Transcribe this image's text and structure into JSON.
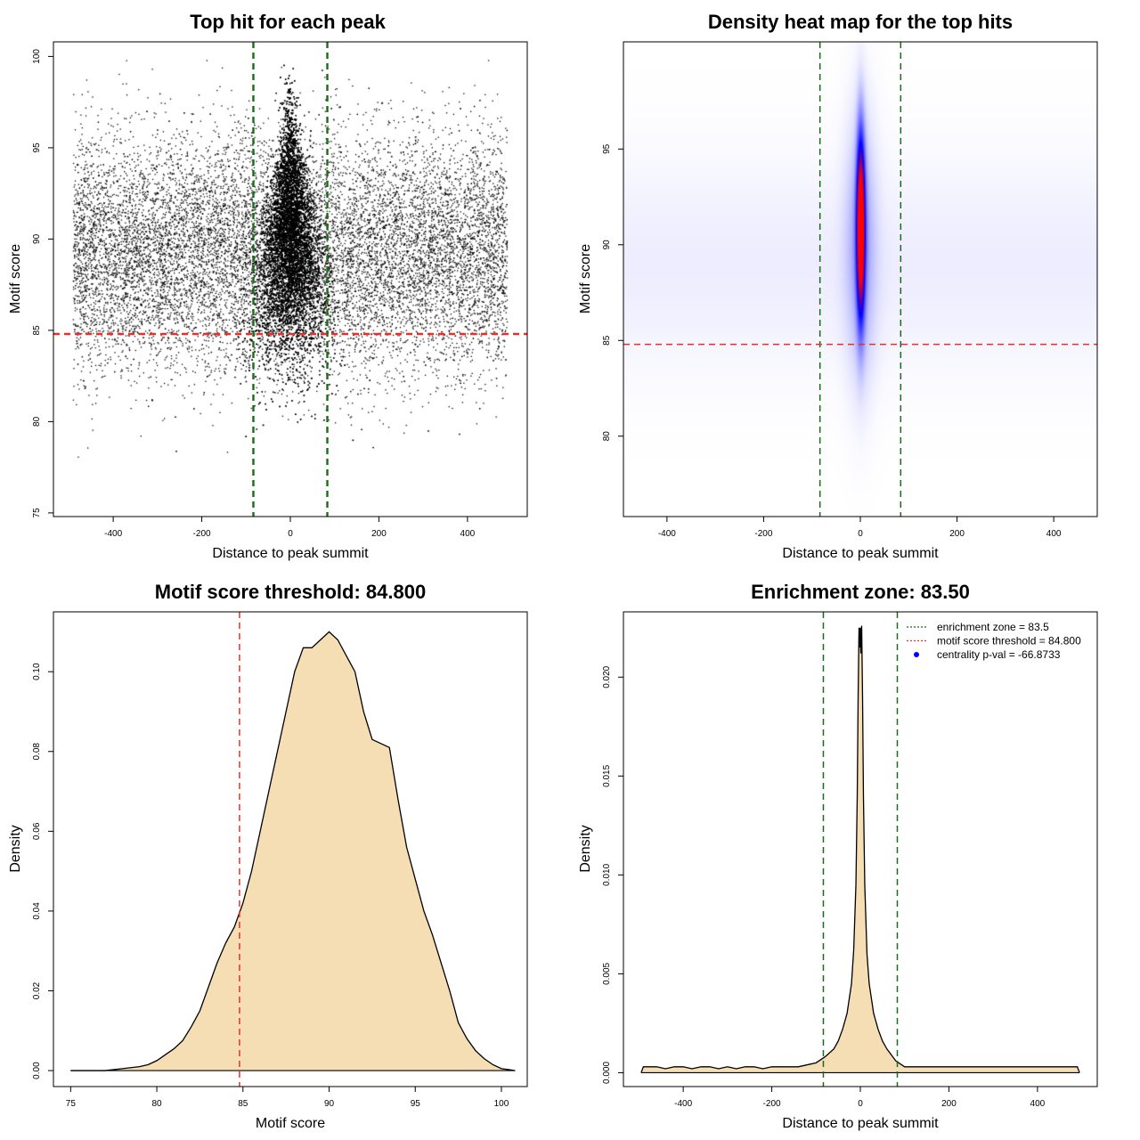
{
  "colors": {
    "vline": "#1a6b1a",
    "hline": "#e8302a",
    "fill": "#f5deb3",
    "point": "#000000",
    "heat_low": "#ffffff",
    "heat_mid": "#0000ff",
    "heat_high": "#ff0000",
    "legend_dot": "#0000ff"
  },
  "chart_data": [
    {
      "type": "scatter",
      "title": "Top hit for each peak",
      "xlabel": "Distance to peak summit",
      "ylabel": "Motif score",
      "xlim": [
        -535,
        535
      ],
      "ylim": [
        74.8,
        100.8
      ],
      "xticks": [
        -400,
        -200,
        0,
        200,
        400
      ],
      "yticks": [
        75,
        80,
        85,
        90,
        95,
        100
      ],
      "vlines": [
        -83.5,
        83.5
      ],
      "hline": 84.8,
      "point_density": {
        "x_range": [
          -490,
          490
        ],
        "center_sd": 30,
        "score_mean": 89.5,
        "score_sd": 3.2,
        "score_range": [
          76,
          100
        ],
        "points_shown": "many thousands"
      }
    },
    {
      "type": "heatmap",
      "title": "Density heat map for the top hits",
      "xlabel": "Distance to peak summit",
      "ylabel": "Motif score",
      "xlim": [
        -490,
        490
      ],
      "ylim": [
        75.8,
        100.6
      ],
      "xticks": [
        -400,
        -200,
        0,
        200,
        400
      ],
      "yticks": [
        80,
        85,
        90,
        95
      ],
      "vlines": [
        -83.5,
        83.5
      ],
      "hline": 84.8,
      "hotspot": {
        "x": 0,
        "y": 91,
        "x_sd": 6,
        "y_sd": 3.2
      }
    },
    {
      "type": "area",
      "title": "Motif score threshold: 84.800",
      "xlabel": "Motif score",
      "ylabel": "Density",
      "xlim": [
        74,
        101.5
      ],
      "ylim": [
        -0.004,
        0.115
      ],
      "xticks": [
        75,
        80,
        85,
        90,
        95,
        100
      ],
      "yticks": [
        0.0,
        0.02,
        0.04,
        0.06,
        0.08,
        0.1
      ],
      "ytick_labels": [
        "0.00",
        "0.02",
        "0.04",
        "0.06",
        "0.08",
        "0.10"
      ],
      "vline": 84.8,
      "x": [
        75,
        76,
        77,
        78,
        79,
        79.5,
        80,
        80.5,
        81,
        81.5,
        82,
        82.5,
        83,
        83.5,
        84,
        84.5,
        85,
        85.5,
        86,
        86.5,
        87,
        87.5,
        88,
        88.5,
        89,
        89.5,
        90,
        90.5,
        91,
        91.5,
        92,
        92.5,
        93,
        93.5,
        94,
        94.5,
        95,
        95.5,
        96,
        96.5,
        97,
        97.5,
        98,
        98.5,
        99,
        99.5,
        100,
        100.5,
        100.8
      ],
      "y": [
        0.0,
        0.0,
        0.0,
        0.0005,
        0.001,
        0.0015,
        0.0025,
        0.004,
        0.0055,
        0.0075,
        0.011,
        0.015,
        0.021,
        0.027,
        0.032,
        0.036,
        0.042,
        0.05,
        0.06,
        0.07,
        0.08,
        0.09,
        0.1,
        0.106,
        0.106,
        0.108,
        0.11,
        0.108,
        0.104,
        0.1,
        0.09,
        0.083,
        0.082,
        0.081,
        0.068,
        0.056,
        0.048,
        0.04,
        0.034,
        0.027,
        0.02,
        0.012,
        0.008,
        0.005,
        0.003,
        0.0015,
        0.0005,
        0.0002,
        0.0
      ]
    },
    {
      "type": "area",
      "title": "Enrichment zone: 83.50",
      "xlabel": "Distance to peak summit",
      "ylabel": "Density",
      "xlim": [
        -535,
        535
      ],
      "ylim": [
        -0.0007,
        0.0233
      ],
      "xticks": [
        -400,
        -200,
        0,
        200,
        400
      ],
      "yticks": [
        0.0,
        0.005,
        0.01,
        0.015,
        0.02
      ],
      "ytick_labels": [
        "0.000",
        "0.005",
        "0.010",
        "0.015",
        "0.020"
      ],
      "vlines": [
        -83.5,
        83.5
      ],
      "x": [
        -495,
        -490,
        -480,
        -460,
        -440,
        -420,
        -400,
        -380,
        -360,
        -340,
        -320,
        -300,
        -280,
        -260,
        -240,
        -220,
        -200,
        -180,
        -160,
        -140,
        -120,
        -100,
        -80,
        -60,
        -50,
        -40,
        -30,
        -20,
        -15,
        -10,
        -7,
        -5,
        -3,
        -1,
        0,
        1,
        3,
        5,
        7,
        10,
        15,
        20,
        30,
        40,
        50,
        60,
        80,
        100,
        120,
        140,
        160,
        180,
        200,
        220,
        240,
        260,
        280,
        300,
        320,
        340,
        360,
        380,
        400,
        420,
        440,
        460,
        480,
        490,
        495
      ],
      "y": [
        0.0,
        0.0003,
        0.0003,
        0.0003,
        0.0002,
        0.0003,
        0.0003,
        0.0002,
        0.0003,
        0.0003,
        0.0002,
        0.0003,
        0.0002,
        0.0003,
        0.0003,
        0.0002,
        0.0003,
        0.0003,
        0.0003,
        0.0003,
        0.0004,
        0.0005,
        0.0008,
        0.0012,
        0.0016,
        0.0022,
        0.003,
        0.0045,
        0.0062,
        0.0095,
        0.014,
        0.019,
        0.0225,
        0.0215,
        0.0225,
        0.0212,
        0.0226,
        0.019,
        0.014,
        0.0095,
        0.006,
        0.0045,
        0.003,
        0.0022,
        0.0016,
        0.0012,
        0.0006,
        0.0003,
        0.0003,
        0.0003,
        0.0003,
        0.0003,
        0.0003,
        0.0003,
        0.0003,
        0.0003,
        0.0003,
        0.0003,
        0.0003,
        0.0003,
        0.0003,
        0.0003,
        0.0003,
        0.0003,
        0.0003,
        0.0003,
        0.0003,
        0.0003,
        0.0
      ],
      "legend": {
        "placement": "top-right",
        "entries": [
          {
            "label": "enrichment zone = 83.5",
            "style": "dotted-line",
            "color": "#1a6b1a"
          },
          {
            "label": "motif score threshold = 84.800",
            "style": "dotted-line",
            "color": "#e8302a"
          },
          {
            "label": "centrality p-val = -66.8733",
            "style": "dot",
            "color": "#0000ff"
          }
        ]
      }
    }
  ]
}
